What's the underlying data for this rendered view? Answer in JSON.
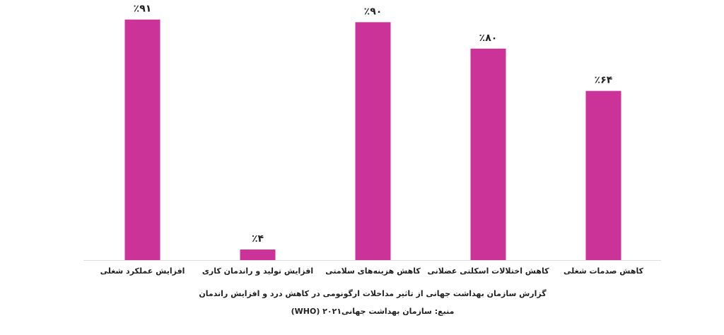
{
  "chart_data": {
    "type": "bar",
    "title": "گزارش سازمان بهداشت جهانی از تاثیر مداخلات ارگونومی در کاهش درد و افزایش راندمان",
    "subtitle": "منبع: سازمان بهداشت جهانی۲۰۲۱ (WHO)",
    "categories": [
      "افزایش عملکرد شغلی",
      "افزایش تولید و راندمان کاری",
      "کاهش هزینه‌های سلامتی",
      "کاهش اختلالات اسکلتی عضلانی",
      "کاهش صدمات شغلی"
    ],
    "values": [
      91,
      4,
      90,
      80,
      64
    ],
    "value_labels": [
      "٪۹۱",
      "٪۴",
      "٪۹۰",
      "٪۸۰",
      "٪۶۴"
    ],
    "color": "#cc3399",
    "ylim": [
      0,
      100
    ]
  }
}
